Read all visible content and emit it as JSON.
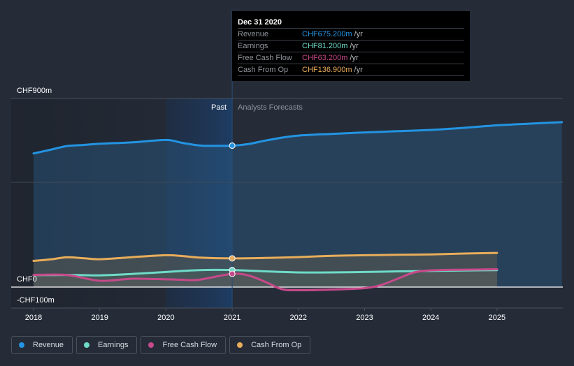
{
  "tooltip": {
    "date": "Dec 31 2020",
    "rows": [
      {
        "label": "Revenue",
        "value": "CHF675.200m",
        "unit": "/yr",
        "color": "#2394e2"
      },
      {
        "label": "Earnings",
        "value": "CHF81.200m",
        "unit": "/yr",
        "color": "#6fdbc8"
      },
      {
        "label": "Free Cash Flow",
        "value": "CHF63.200m",
        "unit": "/yr",
        "color": "#c7498a"
      },
      {
        "label": "Cash From Op",
        "value": "CHF136.900m",
        "unit": "/yr",
        "color": "#e8ad5a"
      }
    ]
  },
  "legend": [
    {
      "label": "Revenue",
      "color": "#2394e2"
    },
    {
      "label": "Earnings",
      "color": "#6fdbc8"
    },
    {
      "label": "Free Cash Flow",
      "color": "#c7498a"
    },
    {
      "label": "Cash From Op",
      "color": "#e8ad5a"
    }
  ],
  "chart_data": {
    "type": "line",
    "title": "",
    "xlabel": "",
    "ylabel": "",
    "currency": "CHF",
    "xlim": [
      2017.7,
      2025.98
    ],
    "ylim": [
      -100,
      900
    ],
    "y_ticks": [
      {
        "value": 900,
        "label": "CHF900m"
      },
      {
        "value": 0,
        "label": "CHF0"
      },
      {
        "value": -100,
        "label": "-CHF100m"
      }
    ],
    "x_ticks": [
      "2018",
      "2019",
      "2020",
      "2021",
      "2022",
      "2023",
      "2024",
      "2025"
    ],
    "divider_x": 2021,
    "past_label": "Past",
    "forecast_label": "Analysts Forecasts",
    "highlight_range": [
      2020,
      2021
    ],
    "grid": true,
    "legend_position": "bottom-left",
    "series": [
      {
        "name": "Revenue",
        "color": "#2394e2",
        "points": [
          [
            2018,
            638
          ],
          [
            2018.25,
            655
          ],
          [
            2018.5,
            673
          ],
          [
            2018.75,
            678
          ],
          [
            2019,
            684
          ],
          [
            2019.5,
            691
          ],
          [
            2020,
            702
          ],
          [
            2020.25,
            688
          ],
          [
            2020.5,
            676
          ],
          [
            2020.75,
            674
          ],
          [
            2021,
            675
          ],
          [
            2021.25,
            683
          ],
          [
            2021.5,
            699
          ],
          [
            2021.75,
            713
          ],
          [
            2022,
            723
          ],
          [
            2022.5,
            731
          ],
          [
            2023,
            738
          ],
          [
            2023.5,
            744
          ],
          [
            2024,
            750
          ],
          [
            2024.5,
            760
          ],
          [
            2025,
            772
          ],
          [
            2025.5,
            780
          ],
          [
            2025.98,
            787
          ]
        ]
      },
      {
        "name": "Earnings",
        "color": "#6fdbc8",
        "points": [
          [
            2018,
            57
          ],
          [
            2018.5,
            58
          ],
          [
            2019,
            56
          ],
          [
            2019.5,
            63
          ],
          [
            2020,
            72
          ],
          [
            2020.5,
            81
          ],
          [
            2021,
            81.2
          ],
          [
            2021.5,
            75
          ],
          [
            2022,
            70
          ],
          [
            2022.5,
            70
          ],
          [
            2023,
            72
          ],
          [
            2023.5,
            75
          ],
          [
            2024,
            77
          ],
          [
            2024.5,
            79
          ],
          [
            2025,
            81
          ]
        ]
      },
      {
        "name": "Free Cash Flow",
        "color": "#c7498a",
        "points": [
          [
            2018,
            58
          ],
          [
            2018.5,
            58
          ],
          [
            2019,
            30
          ],
          [
            2019.5,
            40
          ],
          [
            2020,
            37
          ],
          [
            2020.25,
            35
          ],
          [
            2020.5,
            35
          ],
          [
            2021,
            63.2
          ],
          [
            2021.25,
            55
          ],
          [
            2021.5,
            25
          ],
          [
            2021.75,
            -10
          ],
          [
            2022,
            -15
          ],
          [
            2022.5,
            -12
          ],
          [
            2023,
            -5
          ],
          [
            2023.25,
            10
          ],
          [
            2023.5,
            40
          ],
          [
            2023.75,
            70
          ],
          [
            2024,
            80
          ],
          [
            2024.5,
            83
          ],
          [
            2025,
            85
          ]
        ]
      },
      {
        "name": "Cash From Op",
        "color": "#e8ad5a",
        "points": [
          [
            2018,
            125
          ],
          [
            2018.25,
            132
          ],
          [
            2018.5,
            142
          ],
          [
            2018.75,
            138
          ],
          [
            2019,
            133
          ],
          [
            2019.5,
            143
          ],
          [
            2020,
            152
          ],
          [
            2020.25,
            148
          ],
          [
            2020.5,
            141
          ],
          [
            2021,
            136.9
          ],
          [
            2021.5,
            139
          ],
          [
            2022,
            143
          ],
          [
            2022.5,
            149
          ],
          [
            2023,
            152
          ],
          [
            2023.5,
            154
          ],
          [
            2024,
            156
          ],
          [
            2024.5,
            160
          ],
          [
            2025,
            163
          ]
        ]
      }
    ]
  }
}
